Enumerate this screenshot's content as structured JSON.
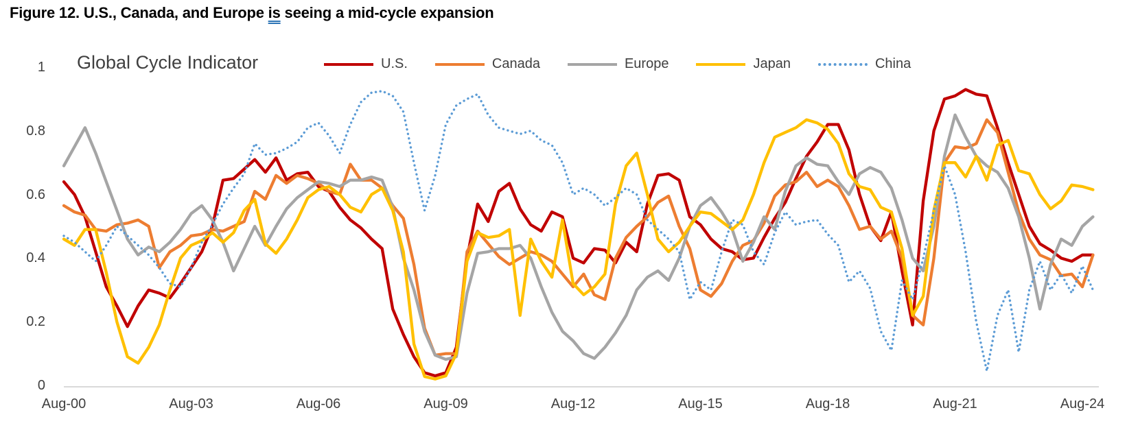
{
  "figure": {
    "title_pre": "Figure 12. U.S., Canada, and Europe ",
    "title_grammar_flagged_word": "is",
    "title_post": " seeing a mid-cycle expansion",
    "grammar_underline_color": "#2E75B6"
  },
  "chart_data": {
    "type": "line",
    "title": "Global Cycle Indicator",
    "xlabel": "",
    "ylabel": "",
    "ylim": [
      0,
      1
    ],
    "grid": false,
    "legend_position": "top",
    "axis_line_color": "#D9D9D9",
    "x_start": "Aug-2000",
    "x_step_years": 0.25,
    "x_tick_labels": [
      "Aug-00",
      "Aug-03",
      "Aug-06",
      "Aug-09",
      "Aug-12",
      "Aug-15",
      "Aug-18",
      "Aug-21",
      "Aug-24"
    ],
    "y_ticks": [
      {
        "label": "1",
        "value": 1.0
      },
      {
        "label": "0.8",
        "value": 0.8
      },
      {
        "label": "0.6",
        "value": 0.6
      },
      {
        "label": "0.4",
        "value": 0.4
      },
      {
        "label": "0.2",
        "value": 0.2
      },
      {
        "label": "0",
        "value": 0.0
      }
    ],
    "series": [
      {
        "name": "U.S.",
        "color": "#C00000",
        "style": "solid",
        "values": [
          0.64,
          0.6,
          0.53,
          0.42,
          0.31,
          0.25,
          0.185,
          0.25,
          0.3,
          0.29,
          0.275,
          0.32,
          0.37,
          0.42,
          0.5,
          0.645,
          0.65,
          0.68,
          0.71,
          0.67,
          0.715,
          0.645,
          0.665,
          0.67,
          0.625,
          0.61,
          0.56,
          0.52,
          0.495,
          0.46,
          0.43,
          0.24,
          0.16,
          0.09,
          0.04,
          0.03,
          0.04,
          0.12,
          0.4,
          0.57,
          0.515,
          0.61,
          0.635,
          0.555,
          0.505,
          0.485,
          0.545,
          0.53,
          0.4,
          0.385,
          0.43,
          0.425,
          0.385,
          0.45,
          0.42,
          0.57,
          0.66,
          0.665,
          0.645,
          0.53,
          0.505,
          0.46,
          0.43,
          0.42,
          0.395,
          0.4,
          0.465,
          0.525,
          0.575,
          0.65,
          0.72,
          0.765,
          0.82,
          0.82,
          0.74,
          0.6,
          0.5,
          0.455,
          0.545,
          0.36,
          0.19,
          0.58,
          0.8,
          0.9,
          0.91,
          0.93,
          0.915,
          0.91,
          0.81,
          0.7,
          0.6,
          0.5,
          0.445,
          0.425,
          0.4,
          0.39,
          0.41,
          0.41
        ]
      },
      {
        "name": "Canada",
        "color": "#ED7D31",
        "style": "solid",
        "values": [
          0.565,
          0.545,
          0.535,
          0.49,
          0.485,
          0.505,
          0.51,
          0.52,
          0.5,
          0.37,
          0.42,
          0.44,
          0.47,
          0.475,
          0.49,
          0.485,
          0.5,
          0.515,
          0.61,
          0.585,
          0.66,
          0.635,
          0.66,
          0.65,
          0.635,
          0.61,
          0.6,
          0.695,
          0.645,
          0.645,
          0.62,
          0.565,
          0.525,
          0.38,
          0.18,
          0.095,
          0.1,
          0.1,
          0.42,
          0.485,
          0.445,
          0.405,
          0.38,
          0.4,
          0.42,
          0.41,
          0.39,
          0.35,
          0.31,
          0.35,
          0.285,
          0.27,
          0.4,
          0.465,
          0.5,
          0.53,
          0.575,
          0.595,
          0.5,
          0.43,
          0.3,
          0.28,
          0.32,
          0.39,
          0.44,
          0.455,
          0.51,
          0.595,
          0.63,
          0.64,
          0.67,
          0.625,
          0.645,
          0.625,
          0.565,
          0.49,
          0.5,
          0.46,
          0.485,
          0.4,
          0.22,
          0.19,
          0.4,
          0.7,
          0.75,
          0.745,
          0.76,
          0.835,
          0.795,
          0.67,
          0.545,
          0.46,
          0.41,
          0.395,
          0.345,
          0.35,
          0.31,
          0.41
        ]
      },
      {
        "name": "Europe",
        "color": "#A5A5A5",
        "style": "solid",
        "values": [
          0.69,
          0.75,
          0.81,
          0.73,
          0.64,
          0.55,
          0.46,
          0.41,
          0.435,
          0.42,
          0.45,
          0.49,
          0.54,
          0.565,
          0.52,
          0.45,
          0.36,
          0.43,
          0.5,
          0.44,
          0.5,
          0.555,
          0.59,
          0.615,
          0.64,
          0.635,
          0.625,
          0.645,
          0.645,
          0.655,
          0.645,
          0.56,
          0.4,
          0.3,
          0.17,
          0.095,
          0.082,
          0.09,
          0.29,
          0.415,
          0.42,
          0.43,
          0.43,
          0.44,
          0.4,
          0.31,
          0.23,
          0.17,
          0.14,
          0.1,
          0.085,
          0.12,
          0.165,
          0.22,
          0.3,
          0.34,
          0.36,
          0.33,
          0.4,
          0.5,
          0.565,
          0.59,
          0.545,
          0.49,
          0.39,
          0.45,
          0.53,
          0.49,
          0.61,
          0.69,
          0.715,
          0.695,
          0.69,
          0.64,
          0.6,
          0.665,
          0.685,
          0.67,
          0.62,
          0.52,
          0.4,
          0.36,
          0.5,
          0.72,
          0.85,
          0.78,
          0.72,
          0.69,
          0.67,
          0.62,
          0.53,
          0.4,
          0.24,
          0.38,
          0.46,
          0.44,
          0.5,
          0.53
        ]
      },
      {
        "name": "Japan",
        "color": "#FFC000",
        "style": "solid",
        "values": [
          0.46,
          0.44,
          0.49,
          0.49,
          0.355,
          0.2,
          0.09,
          0.07,
          0.12,
          0.19,
          0.3,
          0.4,
          0.44,
          0.455,
          0.48,
          0.45,
          0.48,
          0.55,
          0.585,
          0.445,
          0.415,
          0.46,
          0.52,
          0.59,
          0.615,
          0.625,
          0.6,
          0.56,
          0.545,
          0.6,
          0.62,
          0.55,
          0.42,
          0.13,
          0.028,
          0.02,
          0.03,
          0.1,
          0.39,
          0.48,
          0.465,
          0.47,
          0.49,
          0.22,
          0.46,
          0.39,
          0.34,
          0.52,
          0.32,
          0.285,
          0.31,
          0.35,
          0.57,
          0.69,
          0.73,
          0.6,
          0.46,
          0.42,
          0.45,
          0.5,
          0.545,
          0.54,
          0.515,
          0.49,
          0.52,
          0.6,
          0.7,
          0.78,
          0.795,
          0.81,
          0.835,
          0.825,
          0.805,
          0.76,
          0.665,
          0.625,
          0.615,
          0.56,
          0.545,
          0.43,
          0.22,
          0.28,
          0.55,
          0.7,
          0.7,
          0.655,
          0.72,
          0.645,
          0.755,
          0.77,
          0.675,
          0.665,
          0.6,
          0.555,
          0.58,
          0.63,
          0.625,
          0.615
        ]
      },
      {
        "name": "China",
        "color": "#5B9BD5",
        "style": "dotted",
        "values": [
          0.47,
          0.45,
          0.42,
          0.39,
          0.44,
          0.5,
          0.47,
          0.44,
          0.41,
          0.37,
          0.32,
          0.31,
          0.37,
          0.45,
          0.505,
          0.57,
          0.62,
          0.665,
          0.76,
          0.725,
          0.73,
          0.745,
          0.765,
          0.81,
          0.825,
          0.785,
          0.73,
          0.82,
          0.89,
          0.92,
          0.925,
          0.91,
          0.86,
          0.7,
          0.55,
          0.66,
          0.82,
          0.88,
          0.9,
          0.915,
          0.85,
          0.81,
          0.8,
          0.79,
          0.8,
          0.77,
          0.755,
          0.7,
          0.6,
          0.62,
          0.6,
          0.565,
          0.59,
          0.62,
          0.6,
          0.52,
          0.49,
          0.46,
          0.42,
          0.27,
          0.325,
          0.3,
          0.42,
          0.52,
          0.505,
          0.42,
          0.38,
          0.48,
          0.545,
          0.505,
          0.515,
          0.52,
          0.475,
          0.44,
          0.325,
          0.36,
          0.305,
          0.17,
          0.11,
          0.33,
          0.27,
          0.4,
          0.55,
          0.69,
          0.6,
          0.42,
          0.2,
          0.045,
          0.22,
          0.3,
          0.105,
          0.3,
          0.39,
          0.3,
          0.35,
          0.29,
          0.375,
          0.3
        ]
      }
    ]
  }
}
